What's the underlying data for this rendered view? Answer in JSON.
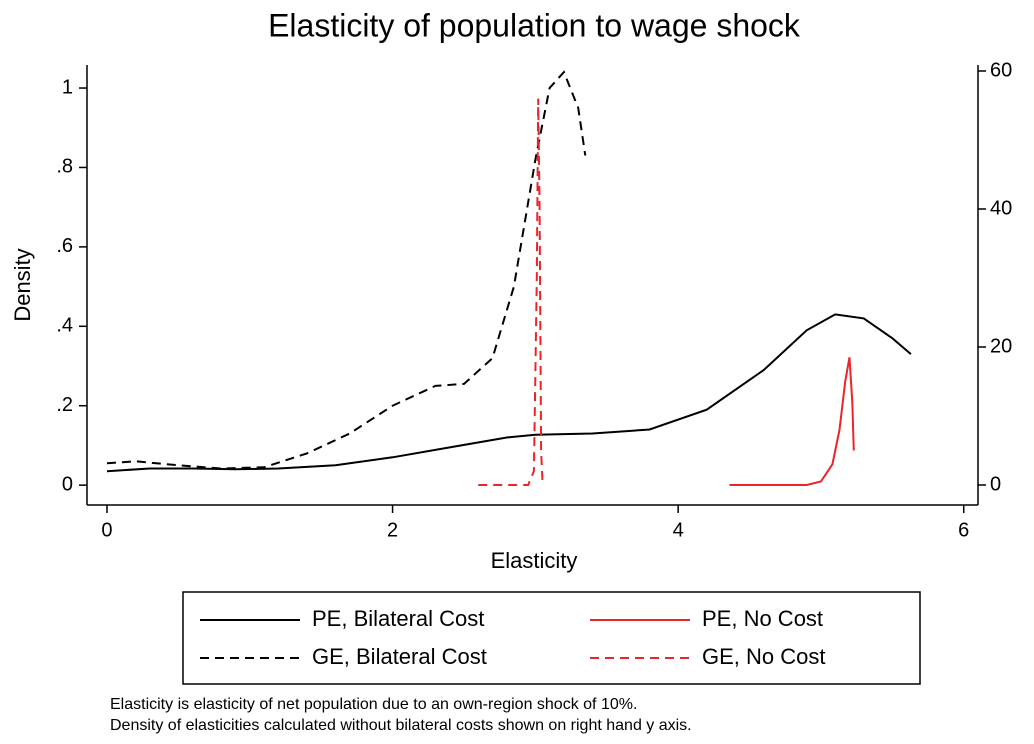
{
  "chart_data": {
    "type": "line",
    "title": "Elasticity of population to wage shock",
    "xlabel": "Elasticity",
    "ylabel": "Density",
    "xlim": [
      -0.14,
      6.1
    ],
    "xticks": [
      0,
      2,
      4,
      6
    ],
    "ylim": [
      -0.05,
      1.058
    ],
    "yticks": [
      0,
      {
        "value": 0.2,
        "label": ".2"
      },
      {
        "value": 0.4,
        "label": ".4"
      },
      {
        "value": 0.6,
        "label": ".6"
      },
      {
        "value": 0.8,
        "label": ".8"
      },
      1
    ],
    "y2lim": [
      -2.9,
      60.87
    ],
    "y2ticks": [
      0,
      20,
      40,
      60
    ],
    "series": [
      {
        "name": "PE, Bilateral Cost",
        "color": "#000000",
        "style": "solid",
        "x": [
          0,
          0.3,
          0.6,
          0.9,
          1.2,
          1.6,
          2.0,
          2.4,
          2.8,
          3.0,
          3.4,
          3.8,
          4.2,
          4.6,
          4.9,
          5.1,
          5.3,
          5.5,
          5.63
        ],
        "values": [
          0.035,
          0.042,
          0.042,
          0.04,
          0.042,
          0.05,
          0.07,
          0.095,
          0.12,
          0.127,
          0.13,
          0.14,
          0.19,
          0.29,
          0.39,
          0.43,
          0.42,
          0.37,
          0.33
        ]
      },
      {
        "name": "GE, Bilateral Cost",
        "color": "#000000",
        "style": "dashed",
        "x": [
          0,
          0.2,
          0.5,
          0.8,
          1.1,
          1.4,
          1.7,
          2.0,
          2.3,
          2.5,
          2.7,
          2.85,
          3.0,
          3.1,
          3.2,
          3.3,
          3.35
        ],
        "values": [
          0.055,
          0.06,
          0.05,
          0.042,
          0.045,
          0.08,
          0.13,
          0.2,
          0.25,
          0.255,
          0.32,
          0.5,
          0.82,
          1.0,
          1.04,
          0.95,
          0.83
        ]
      },
      {
        "name": "PE, No Cost",
        "color": "#e8262a",
        "style": "solid",
        "axis": "y2",
        "x": [
          4.36,
          4.9,
          5.0,
          5.08,
          5.13,
          5.17,
          5.2,
          5.22,
          5.23
        ],
        "values": [
          0,
          0,
          0.5,
          3,
          8,
          15,
          18.5,
          12,
          5
        ]
      },
      {
        "name": "GE, No Cost",
        "color": "#e8262a",
        "style": "dashed",
        "axis": "y2",
        "x": [
          2.6,
          2.95,
          2.99,
          3.01,
          3.02,
          3.03,
          3.04,
          3.05
        ],
        "values": [
          0,
          0,
          2,
          30,
          56,
          40,
          5,
          0.5
        ]
      }
    ],
    "notes": [
      "Elasticity is elasticity of net population due to an own-region shock of 10%.",
      "Density of elasticities calculated without bilateral costs shown on right hand y axis."
    ]
  }
}
